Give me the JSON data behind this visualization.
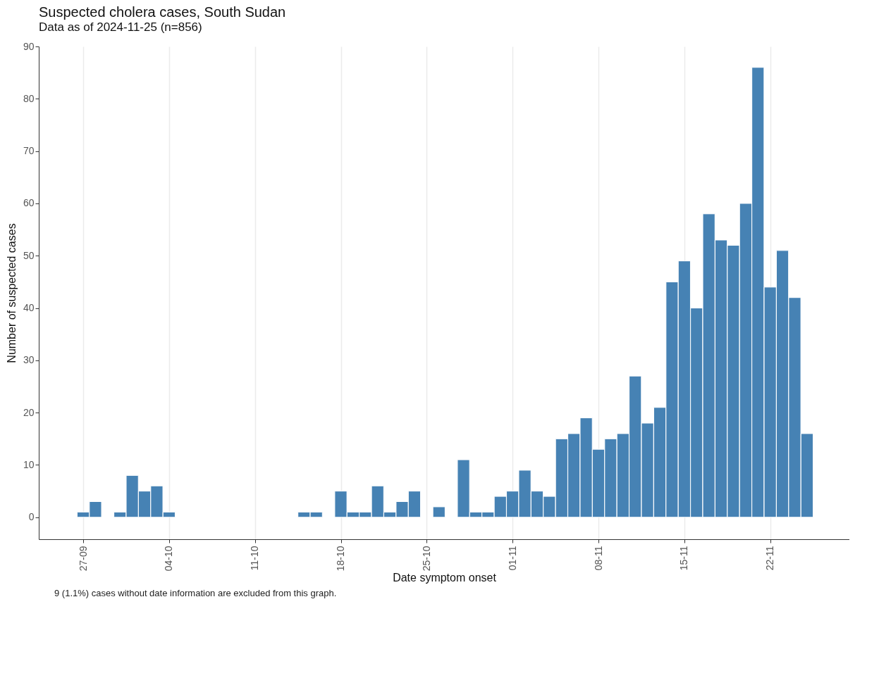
{
  "chart_data": {
    "type": "bar",
    "title": "Suspected cholera cases, South Sudan",
    "subtitle": "Data as of 2024-11-25 (n=856)",
    "xlabel": "Date symptom onset",
    "ylabel": "Number of suspected cases",
    "x": [
      "2024-09-27",
      "2024-09-28",
      "2024-09-30",
      "2024-10-01",
      "2024-10-02",
      "2024-10-03",
      "2024-10-04",
      "2024-10-15",
      "2024-10-16",
      "2024-10-18",
      "2024-10-19",
      "2024-10-20",
      "2024-10-21",
      "2024-10-22",
      "2024-10-23",
      "2024-10-24",
      "2024-10-26",
      "2024-10-28",
      "2024-10-29",
      "2024-10-30",
      "2024-10-31",
      "2024-11-01",
      "2024-11-02",
      "2024-11-03",
      "2024-11-04",
      "2024-11-05",
      "2024-11-06",
      "2024-11-07",
      "2024-11-08",
      "2024-11-09",
      "2024-11-10",
      "2024-11-11",
      "2024-11-12",
      "2024-11-13",
      "2024-11-14",
      "2024-11-15",
      "2024-11-16",
      "2024-11-17",
      "2024-11-18",
      "2024-11-19",
      "2024-11-20",
      "2024-11-21",
      "2024-11-22",
      "2024-11-23",
      "2024-11-24",
      "2024-11-25"
    ],
    "values": [
      1,
      3,
      1,
      8,
      5,
      6,
      1,
      1,
      1,
      5,
      1,
      1,
      6,
      1,
      3,
      5,
      2,
      11,
      1,
      1,
      4,
      5,
      9,
      5,
      4,
      15,
      16,
      19,
      13,
      15,
      16,
      27,
      18,
      21,
      45,
      49,
      40,
      58,
      53,
      52,
      60,
      86,
      44,
      51,
      42,
      16
    ],
    "color": "#4682b4",
    "xlim": [
      "2024-09-23T16:00",
      "2024-11-28T04:00"
    ],
    "xticks": [
      {
        "value": "2024-09-27",
        "label": "27-09"
      },
      {
        "value": "2024-10-04",
        "label": "04-10"
      },
      {
        "value": "2024-10-11",
        "label": "11-10"
      },
      {
        "value": "2024-10-18",
        "label": "18-10"
      },
      {
        "value": "2024-10-25",
        "label": "25-10"
      },
      {
        "value": "2024-11-01",
        "label": "01-11"
      },
      {
        "value": "2024-11-08",
        "label": "08-11"
      },
      {
        "value": "2024-11-15",
        "label": "15-11"
      },
      {
        "value": "2024-11-22",
        "label": "22-11"
      }
    ],
    "ylim": [
      -4.2,
      90
    ],
    "yticks": [
      0,
      10,
      20,
      30,
      40,
      50,
      60,
      70,
      80,
      90
    ],
    "grid": "x",
    "annotations": [
      "9 (1.1%) cases without date information are excluded from this graph."
    ]
  }
}
